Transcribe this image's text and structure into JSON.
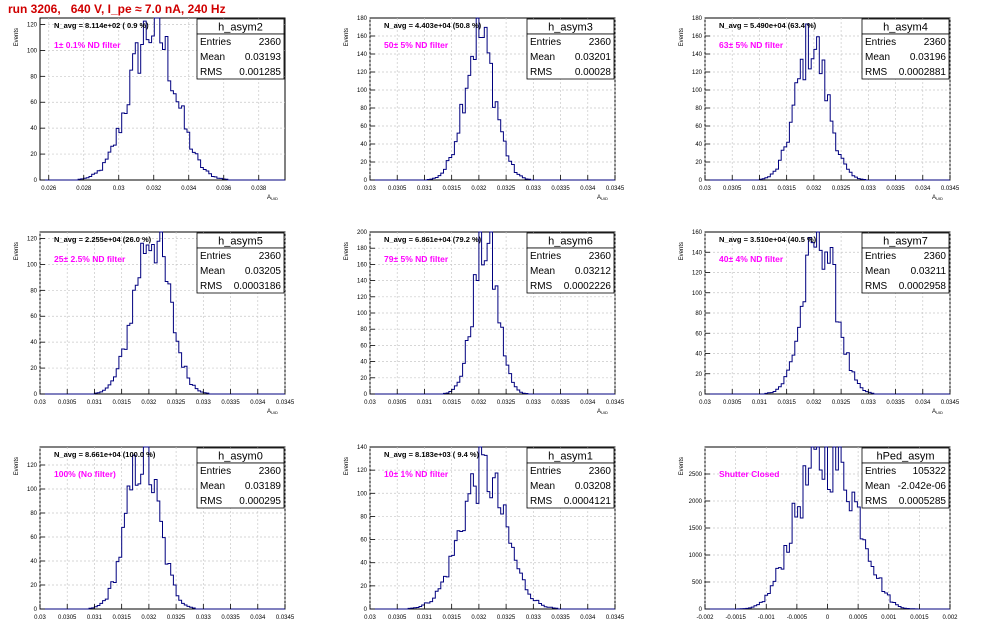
{
  "page": {
    "title": "run 3206,   640 V, I_pe ≈ 7.0 nA, 240 Hz"
  },
  "colors": {
    "hist": "#00007f",
    "title": "#d00000",
    "annotation": "#ff00ff",
    "grid": "#c8c8c8"
  },
  "chart_data": [
    {
      "type": "bar",
      "name": "h_asym2",
      "navg": "N_avg = 8.114e+02 ( 0.9 %)",
      "filter": "1± 0.1% ND filter",
      "stats": {
        "Entries": "2360",
        "Mean": "0.03193",
        "RMS": "0.001285"
      },
      "ylabel": "Events",
      "xlabel": "A_UID",
      "xlim": [
        0.0255,
        0.0395
      ],
      "xticks": [
        0.026,
        0.028,
        0.03,
        0.032,
        0.034,
        0.036,
        0.038
      ],
      "xtick_labels": [
        "0.026",
        "0.028",
        "0.03",
        "0.032",
        "0.034",
        "0.036",
        "0.038"
      ],
      "ylim": [
        0,
        125
      ],
      "yticks": [
        0,
        20,
        40,
        60,
        80,
        100,
        120
      ],
      "ytick_labels": [
        "0",
        "20",
        "40",
        "60",
        "80",
        "100",
        "120"
      ],
      "mean": 0.03193,
      "sigma": 0.001285,
      "peak": 118
    },
    {
      "type": "bar",
      "name": "h_asym3",
      "navg": "N_avg = 4.403e+04 (50.8 %)",
      "filter": "50± 5% ND filter",
      "stats": {
        "Entries": "2360",
        "Mean": "0.03201",
        "RMS": "0.00028"
      },
      "ylabel": "Events",
      "xlabel": "A_UID",
      "xlim": [
        0.03,
        0.0345
      ],
      "xticks": [
        0.03,
        0.0305,
        0.031,
        0.0315,
        0.032,
        0.0325,
        0.033,
        0.0335,
        0.034,
        0.0345
      ],
      "xtick_labels": [
        "0.03",
        "0.0305",
        "0.031",
        "0.0315",
        "0.032",
        "0.0325",
        "0.033",
        "0.0335",
        "0.034",
        "0.0345"
      ],
      "ylim": [
        0,
        180
      ],
      "yticks": [
        0,
        20,
        40,
        60,
        80,
        100,
        120,
        140,
        160,
        180
      ],
      "ytick_labels": [
        "0",
        "20",
        "40",
        "60",
        "80",
        "100",
        "120",
        "140",
        "160",
        "180"
      ],
      "mean": 0.03201,
      "sigma": 0.00028,
      "peak": 160
    },
    {
      "type": "bar",
      "name": "h_asym4",
      "navg": "N_avg = 5.490e+04 (63.4 %)",
      "filter": "63± 5% ND filter",
      "stats": {
        "Entries": "2360",
        "Mean": "0.03196",
        "RMS": "0.0002881"
      },
      "ylabel": "Events",
      "xlabel": "A_UID",
      "xlim": [
        0.03,
        0.0345
      ],
      "xticks": [
        0.03,
        0.0305,
        0.031,
        0.0315,
        0.032,
        0.0325,
        0.033,
        0.0335,
        0.034,
        0.0345
      ],
      "xtick_labels": [
        "0.03",
        "0.0305",
        "0.031",
        "0.0315",
        "0.032",
        "0.0325",
        "0.033",
        "0.0335",
        "0.034",
        "0.0345"
      ],
      "ylim": [
        0,
        180
      ],
      "yticks": [
        0,
        20,
        40,
        60,
        80,
        100,
        120,
        140,
        160,
        180
      ],
      "ytick_labels": [
        "0",
        "20",
        "40",
        "60",
        "80",
        "100",
        "120",
        "140",
        "160",
        "180"
      ],
      "mean": 0.03196,
      "sigma": 0.0002881,
      "peak": 152
    },
    {
      "type": "bar",
      "name": "h_asym5",
      "navg": "N_avg = 2.255e+04 (26.0 %)",
      "filter": "25± 2.5% ND filter",
      "stats": {
        "Entries": "2360",
        "Mean": "0.03205",
        "RMS": "0.0003186"
      },
      "ylabel": "Events",
      "xlabel": "A_UID",
      "xlim": [
        0.03,
        0.0345
      ],
      "xticks": [
        0.03,
        0.0305,
        0.031,
        0.0315,
        0.032,
        0.0325,
        0.033,
        0.0335,
        0.034,
        0.0345
      ],
      "xtick_labels": [
        "0.03",
        "0.0305",
        "0.031",
        "0.0315",
        "0.032",
        "0.0325",
        "0.033",
        "0.0335",
        "0.034",
        "0.0345"
      ],
      "ylim": [
        0,
        125
      ],
      "yticks": [
        0,
        20,
        40,
        60,
        80,
        100,
        120
      ],
      "ytick_labels": [
        "0",
        "20",
        "40",
        "60",
        "80",
        "100",
        "120"
      ],
      "mean": 0.03205,
      "sigma": 0.0003186,
      "peak": 125
    },
    {
      "type": "bar",
      "name": "h_asym6",
      "navg": "N_avg = 6.861e+04 (79.2 %)",
      "filter": "79± 5% ND filter",
      "stats": {
        "Entries": "2360",
        "Mean": "0.03212",
        "RMS": "0.0002226"
      },
      "ylabel": "Events",
      "xlabel": "A_UID",
      "xlim": [
        0.03,
        0.0345
      ],
      "xticks": [
        0.03,
        0.0305,
        0.031,
        0.0315,
        0.032,
        0.0325,
        0.033,
        0.0335,
        0.034,
        0.0345
      ],
      "xtick_labels": [
        "0.03",
        "0.0305",
        "0.031",
        "0.0315",
        "0.032",
        "0.0325",
        "0.033",
        "0.0335",
        "0.034",
        "0.0345"
      ],
      "ylim": [
        0,
        200
      ],
      "yticks": [
        0,
        20,
        40,
        60,
        80,
        100,
        120,
        140,
        160,
        180,
        200
      ],
      "ytick_labels": [
        "0",
        "20",
        "40",
        "60",
        "80",
        "100",
        "120",
        "140",
        "160",
        "180",
        "200"
      ],
      "mean": 0.03212,
      "sigma": 0.0002226,
      "peak": 185
    },
    {
      "type": "bar",
      "name": "h_asym7",
      "navg": "N_avg = 3.510e+04 (40.5 %)",
      "filter": "40± 4% ND filter",
      "stats": {
        "Entries": "2360",
        "Mean": "0.03211",
        "RMS": "0.0002958"
      },
      "ylabel": "Events",
      "xlabel": "A_UID",
      "xlim": [
        0.03,
        0.0345
      ],
      "xticks": [
        0.03,
        0.0305,
        0.031,
        0.0315,
        0.032,
        0.0325,
        0.033,
        0.0335,
        0.034,
        0.0345
      ],
      "xtick_labels": [
        "0.03",
        "0.0305",
        "0.031",
        "0.0315",
        "0.032",
        "0.0325",
        "0.033",
        "0.0335",
        "0.034",
        "0.0345"
      ],
      "ylim": [
        0,
        160
      ],
      "yticks": [
        0,
        20,
        40,
        60,
        80,
        100,
        120,
        140,
        160
      ],
      "ytick_labels": [
        "0",
        "20",
        "40",
        "60",
        "80",
        "100",
        "120",
        "140",
        "160"
      ],
      "mean": 0.03211,
      "sigma": 0.0002958,
      "peak": 158
    },
    {
      "type": "bar",
      "name": "h_asym0",
      "navg": "N_avg = 8.661e+04 (100.0 %)",
      "filter": "100% (No filter)",
      "stats": {
        "Entries": "2360",
        "Mean": "0.03189",
        "RMS": "0.000295"
      },
      "ylabel": "Events",
      "xlabel": "A_UID",
      "xlim": [
        0.03,
        0.0345
      ],
      "xticks": [
        0.03,
        0.0305,
        0.031,
        0.0315,
        0.032,
        0.0325,
        0.033,
        0.0335,
        0.034,
        0.0345
      ],
      "xtick_labels": [
        "0.03",
        "0.0305",
        "0.031",
        "0.0315",
        "0.032",
        "0.0325",
        "0.033",
        "0.0335",
        "0.034",
        "0.0345"
      ],
      "ylim": [
        0,
        135
      ],
      "yticks": [
        0,
        20,
        40,
        60,
        80,
        100,
        120
      ],
      "ytick_labels": [
        "0",
        "20",
        "40",
        "60",
        "80",
        "100",
        "120"
      ],
      "mean": 0.03189,
      "sigma": 0.000295,
      "peak": 128
    },
    {
      "type": "bar",
      "name": "h_asym1",
      "navg": "N_avg = 8.183e+03 ( 9.4 %)",
      "filter": "10± 1% ND filter",
      "stats": {
        "Entries": "2360",
        "Mean": "0.03208",
        "RMS": "0.0004121"
      },
      "ylabel": "Events",
      "xlabel": "A_UID",
      "xlim": [
        0.03,
        0.0345
      ],
      "xticks": [
        0.03,
        0.0305,
        0.031,
        0.0315,
        0.032,
        0.0325,
        0.033,
        0.0335,
        0.034,
        0.0345
      ],
      "xtick_labels": [
        "0.03",
        "0.0305",
        "0.031",
        "0.0315",
        "0.032",
        "0.0325",
        "0.033",
        "0.0335",
        "0.034",
        "0.0345"
      ],
      "ylim": [
        0,
        140
      ],
      "yticks": [
        0,
        20,
        40,
        60,
        80,
        100,
        120,
        140
      ],
      "ytick_labels": [
        "0",
        "20",
        "40",
        "60",
        "80",
        "100",
        "120",
        "140"
      ],
      "mean": 0.03208,
      "sigma": 0.0004121,
      "peak": 118
    },
    {
      "type": "bar",
      "name": "hPed_asym",
      "navg": "",
      "filter": "Shutter Closed",
      "stats": {
        "Entries": "105322",
        "Mean": "-2.042e-06",
        "RMS": "0.0005285"
      },
      "ylabel": "Events",
      "xlabel": "",
      "xlim": [
        -0.002,
        0.002
      ],
      "xticks": [
        -0.002,
        -0.0015,
        -0.001,
        -0.0005,
        0,
        0.0005,
        0.001,
        0.0015,
        0.002
      ],
      "xtick_labels": [
        "-0.002",
        "-0.0015",
        "-0.001",
        "-0.0005",
        "0",
        "0.0005",
        "0.001",
        "0.0015",
        "0.002"
      ],
      "ylim": [
        0,
        3000
      ],
      "yticks": [
        0,
        500,
        1000,
        1500,
        2000,
        2500
      ],
      "ytick_labels": [
        "0",
        "500",
        "1000",
        "1500",
        "2000",
        "2500"
      ],
      "mean": -2.042e-06,
      "sigma": 0.0005285,
      "peak": 2750,
      "flat_top": true
    }
  ]
}
